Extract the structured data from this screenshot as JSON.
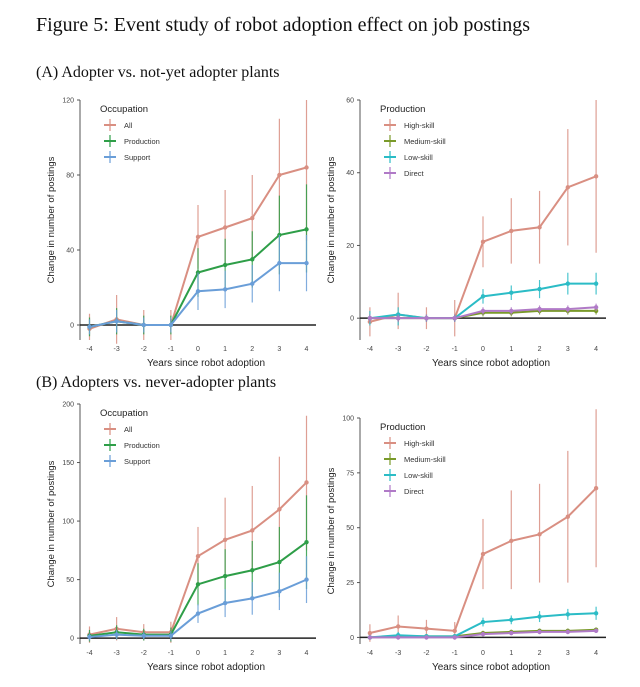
{
  "figure": {
    "title": "Figure 5: Event study of robot adoption effect on job postings",
    "panelA_title": "(A) Adopter vs. not-yet adopter plants",
    "panelB_title": "(B) Adopters vs. never-adopter plants"
  },
  "chart_data": [
    {
      "type": "line",
      "panel": "A-left",
      "xlabel": "Years since robot adoption",
      "ylabel": "Change in number of postings",
      "legend_title": "Occupation",
      "ylim": [
        -8,
        120
      ],
      "yticks": [
        0,
        40,
        80,
        120
      ],
      "x": [
        -4,
        -3,
        -2,
        -1,
        0,
        1,
        2,
        3,
        4
      ],
      "series": [
        {
          "name": "All",
          "color": "#d98f82",
          "values": [
            -2,
            3,
            0,
            0,
            47,
            52,
            57,
            80,
            84
          ],
          "lower": [
            -8,
            -10,
            -8,
            -8,
            30,
            32,
            35,
            50,
            45
          ],
          "upper": [
            6,
            16,
            8,
            8,
            64,
            72,
            80,
            110,
            120
          ]
        },
        {
          "name": "Production",
          "color": "#2e9e48",
          "values": [
            -1,
            2,
            0,
            0,
            28,
            32,
            35,
            48,
            51
          ],
          "lower": [
            -6,
            -5,
            -5,
            -5,
            15,
            18,
            20,
            27,
            28
          ],
          "upper": [
            4,
            9,
            5,
            5,
            41,
            46,
            50,
            69,
            75
          ]
        },
        {
          "name": "Support",
          "color": "#6a9ed8",
          "values": [
            -1,
            2,
            0,
            0,
            18,
            19,
            22,
            33,
            33
          ],
          "lower": [
            -5,
            -4,
            -4,
            -4,
            8,
            9,
            12,
            18,
            18
          ],
          "upper": [
            3,
            8,
            4,
            4,
            28,
            29,
            32,
            48,
            48
          ]
        }
      ]
    },
    {
      "type": "line",
      "panel": "A-right",
      "xlabel": "Years since robot adoption",
      "ylabel": "Change in number of postings",
      "legend_title": "Production",
      "ylim": [
        -6,
        60
      ],
      "yticks": [
        0,
        20,
        40,
        60
      ],
      "x": [
        -4,
        -3,
        -2,
        -1,
        0,
        1,
        2,
        3,
        4
      ],
      "series": [
        {
          "name": "High-skill",
          "color": "#d98f82",
          "values": [
            -1,
            1,
            0,
            0,
            21,
            24,
            25,
            36,
            39
          ],
          "lower": [
            -5,
            -3,
            -3,
            -5,
            14,
            15,
            15,
            20,
            18
          ],
          "upper": [
            3,
            7,
            3,
            5,
            28,
            33,
            35,
            52,
            60
          ]
        },
        {
          "name": "Medium-skill",
          "color": "#7a9a2a",
          "values": [
            0,
            0,
            0,
            0,
            1.5,
            1.5,
            2,
            2,
            2
          ],
          "lower": [
            -1,
            -1,
            -1,
            -1,
            0.5,
            0.5,
            1,
            1,
            1
          ],
          "upper": [
            1,
            1,
            1,
            1,
            2.5,
            2.5,
            3,
            3,
            3
          ]
        },
        {
          "name": "Low-skill",
          "color": "#2bbcc6",
          "values": [
            0,
            1,
            0,
            0,
            6,
            7,
            8,
            9.5,
            9.5
          ],
          "lower": [
            -2,
            -2,
            -1,
            -1,
            4,
            5,
            5.5,
            6.5,
            6.5
          ],
          "upper": [
            2,
            3,
            1,
            1,
            8,
            9,
            10.5,
            12.5,
            12.5
          ]
        },
        {
          "name": "Direct",
          "color": "#b07ac7",
          "values": [
            0,
            0,
            0,
            0,
            2,
            2,
            2.5,
            2.5,
            3
          ],
          "lower": [
            -1,
            -1,
            -1,
            -1,
            1,
            1,
            1.5,
            1.5,
            2
          ],
          "upper": [
            1,
            1,
            1,
            1,
            3,
            3,
            3.5,
            3.5,
            4
          ]
        }
      ]
    },
    {
      "type": "line",
      "panel": "B-left",
      "xlabel": "Years since robot adoption",
      "ylabel": "Change in number of postings",
      "legend_title": "Occupation",
      "ylim": [
        -5,
        200
      ],
      "yticks": [
        0,
        50,
        100,
        150,
        200
      ],
      "x": [
        -4,
        -3,
        -2,
        -1,
        0,
        1,
        2,
        3,
        4
      ],
      "series": [
        {
          "name": "All",
          "color": "#d98f82",
          "values": [
            3,
            8,
            5,
            5,
            70,
            84,
            92,
            110,
            133
          ],
          "lower": [
            -4,
            -2,
            -2,
            -4,
            45,
            55,
            55,
            65,
            75
          ],
          "upper": [
            10,
            18,
            12,
            14,
            95,
            120,
            130,
            155,
            190
          ]
        },
        {
          "name": "Production",
          "color": "#2e9e48",
          "values": [
            2,
            5,
            3,
            3,
            46,
            53,
            58,
            65,
            82
          ],
          "lower": [
            -3,
            -1,
            -2,
            -3,
            28,
            30,
            33,
            35,
            42
          ],
          "upper": [
            7,
            11,
            8,
            9,
            64,
            76,
            83,
            95,
            122
          ]
        },
        {
          "name": "Support",
          "color": "#6a9ed8",
          "values": [
            1,
            3,
            2,
            2,
            21,
            30,
            34,
            40,
            50
          ],
          "lower": [
            -2,
            -1,
            -1,
            -2,
            13,
            18,
            20,
            24,
            30
          ],
          "upper": [
            4,
            7,
            5,
            6,
            29,
            42,
            48,
            56,
            70
          ]
        }
      ]
    },
    {
      "type": "line",
      "panel": "B-right",
      "xlabel": "Years since robot adoption",
      "ylabel": "Change in number of postings",
      "legend_title": "Production",
      "ylim": [
        -3,
        100
      ],
      "yticks": [
        0,
        25,
        50,
        75,
        100
      ],
      "x": [
        -4,
        -3,
        -2,
        -1,
        0,
        1,
        2,
        3,
        4
      ],
      "series": [
        {
          "name": "High-skill",
          "color": "#d98f82",
          "values": [
            2,
            5,
            4,
            3,
            38,
            44,
            47,
            55,
            68
          ],
          "lower": [
            -2,
            0,
            0,
            -1,
            22,
            22,
            25,
            25,
            32
          ],
          "upper": [
            6,
            10,
            8,
            7,
            54,
            67,
            70,
            85,
            104
          ]
        },
        {
          "name": "Medium-skill",
          "color": "#7a9a2a",
          "values": [
            0,
            0.5,
            0.5,
            0.5,
            2,
            2.5,
            3,
            3,
            3.5
          ],
          "lower": [
            -1,
            -0.5,
            -0.5,
            -0.5,
            1,
            1.5,
            2,
            2,
            2.5
          ],
          "upper": [
            1,
            1.5,
            1.5,
            1.5,
            3,
            3.5,
            4,
            4,
            4.5
          ]
        },
        {
          "name": "Low-skill",
          "color": "#2bbcc6",
          "values": [
            0,
            1,
            0.5,
            0.5,
            7,
            8,
            9.5,
            10.5,
            11
          ],
          "lower": [
            -1,
            -0.5,
            -0.5,
            -0.5,
            5,
            6,
            7,
            8,
            8
          ],
          "upper": [
            1,
            2.5,
            1.5,
            1.5,
            9,
            10,
            12,
            13,
            14
          ]
        },
        {
          "name": "Direct",
          "color": "#b07ac7",
          "values": [
            0,
            0,
            0,
            0,
            1.5,
            2,
            2.5,
            2.5,
            3
          ],
          "lower": [
            -1,
            -1,
            -1,
            -1,
            0.5,
            1,
            1.5,
            1.5,
            2
          ],
          "upper": [
            1,
            1,
            1,
            1,
            2.5,
            3,
            3.5,
            3.5,
            4
          ]
        }
      ]
    }
  ]
}
